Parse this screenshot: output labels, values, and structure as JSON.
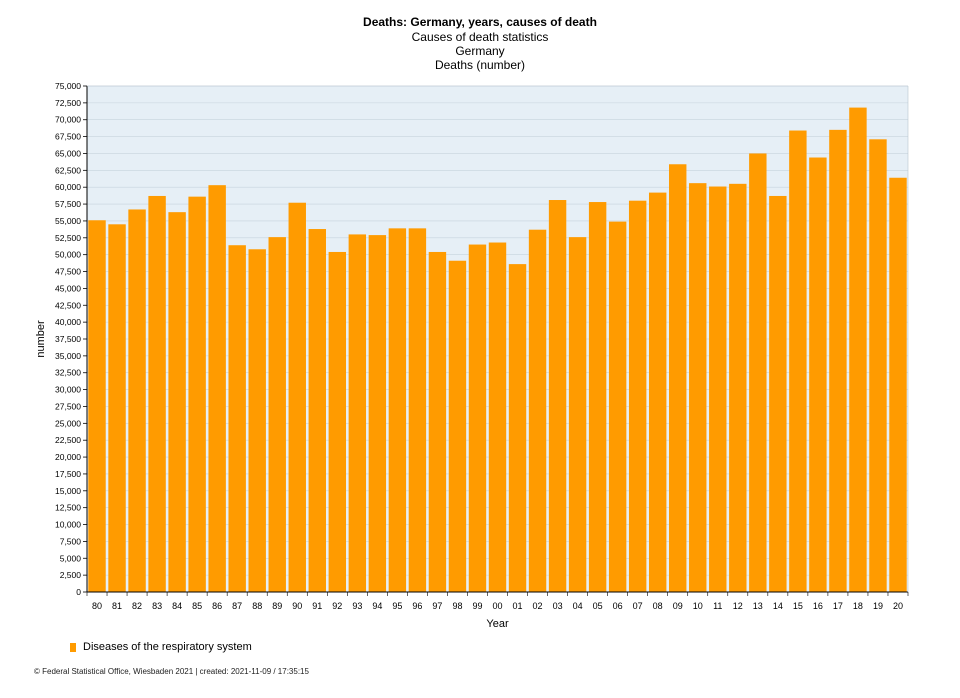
{
  "titles": {
    "title": "Deaths: Germany, years, causes of death",
    "subtitle1": "Causes of death statistics",
    "subtitle2": "Germany",
    "subtitle3": "Deaths (number)"
  },
  "legend": {
    "label": "Diseases of the respiratory system"
  },
  "footer": {
    "text": "© Federal Statistical Office, Wiesbaden 2021 | created: 2021-11-09 / 17:35:15"
  },
  "colors": {
    "bar": "#ff9b00",
    "plot_bg": "#e6eff6",
    "grid": "#c7d3dd",
    "axis": "#000000"
  },
  "chart_data": {
    "type": "bar",
    "title": "Deaths: Germany, years, causes of death",
    "xlabel": "Year",
    "ylabel": "number",
    "ylim": [
      0,
      75000
    ],
    "ytick_step": 2500,
    "grid": true,
    "legend_position": "bottom-left",
    "categories": [
      "80",
      "81",
      "82",
      "83",
      "84",
      "85",
      "86",
      "87",
      "88",
      "89",
      "90",
      "91",
      "92",
      "93",
      "94",
      "95",
      "96",
      "97",
      "98",
      "99",
      "00",
      "01",
      "02",
      "03",
      "04",
      "05",
      "06",
      "07",
      "08",
      "09",
      "10",
      "11",
      "12",
      "13",
      "14",
      "15",
      "16",
      "17",
      "18",
      "19",
      "20"
    ],
    "series": [
      {
        "name": "Diseases of the respiratory system",
        "values": [
          55100,
          54500,
          56700,
          58700,
          56300,
          58600,
          60300,
          51400,
          50800,
          52600,
          57700,
          53800,
          50400,
          53000,
          52900,
          53900,
          53900,
          50400,
          49100,
          51500,
          51800,
          48600,
          53700,
          58100,
          52600,
          57800,
          54900,
          58000,
          59200,
          63400,
          60600,
          60100,
          60500,
          65000,
          58700,
          68400,
          64400,
          68500,
          71800,
          67100,
          61400
        ]
      }
    ]
  }
}
